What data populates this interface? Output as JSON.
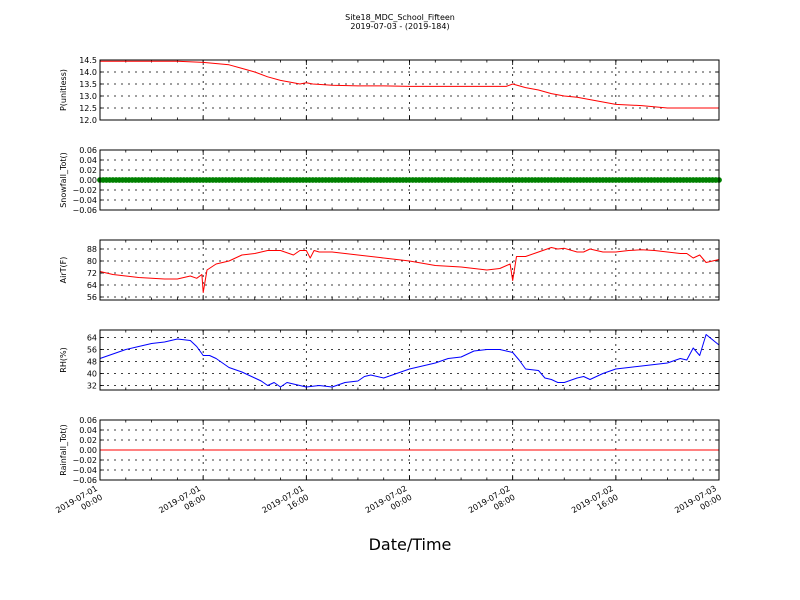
{
  "figure": {
    "title": "Site18_MDC_School_Fifteen",
    "subtitle": "2019-07-03 - (2019-184)",
    "xlabel": "Date/Time"
  },
  "chart_data": [
    {
      "type": "line",
      "ylabel": "P(unitless)",
      "ylim": [
        12.0,
        14.5
      ],
      "yticks": [
        "14.5",
        "14.0",
        "13.5",
        "13.0",
        "12.5",
        "12.0"
      ],
      "grid": true,
      "x_range_hours": [
        0,
        48
      ],
      "x_tick_labels": [
        [
          "2019-07-01",
          "00:00"
        ],
        [
          "2019-07-01",
          "08:00"
        ],
        [
          "2019-07-01",
          "16:00"
        ],
        [
          "2019-07-02",
          "00:00"
        ],
        [
          "2019-07-02",
          "08:00"
        ],
        [
          "2019-07-02",
          "16:00"
        ],
        [
          "2019-07-03",
          "00:00"
        ]
      ],
      "series": [
        {
          "color": "#ff0000",
          "x": [
            0,
            6,
            8,
            10,
            11,
            12,
            13,
            14,
            15,
            15.5,
            16,
            16.5,
            18,
            20,
            22,
            24,
            26,
            28,
            30,
            31.5,
            32,
            33,
            34,
            35,
            36,
            37,
            38,
            39,
            40,
            42,
            44,
            46,
            48
          ],
          "y": [
            14.45,
            14.45,
            14.4,
            14.3,
            14.15,
            14.0,
            13.8,
            13.65,
            13.55,
            13.5,
            13.55,
            13.5,
            13.45,
            13.42,
            13.42,
            13.4,
            13.4,
            13.4,
            13.4,
            13.4,
            13.5,
            13.35,
            13.25,
            13.1,
            13.0,
            12.95,
            12.85,
            12.75,
            12.65,
            12.6,
            12.5,
            12.5,
            12.5
          ]
        }
      ]
    },
    {
      "type": "scatter",
      "ylabel": "Snowfall_Tot()",
      "ylim": [
        -0.06,
        0.06
      ],
      "yticks": [
        "0.06",
        "0.04",
        "0.02",
        "0.00",
        "−0.02",
        "−0.04",
        "−0.06"
      ],
      "grid": true,
      "x_range_hours": [
        0,
        48
      ],
      "x_tick_labels": [
        [
          "2019-07-01",
          "00:00"
        ],
        [
          "2019-07-01",
          "08:00"
        ],
        [
          "2019-07-01",
          "16:00"
        ],
        [
          "2019-07-02",
          "00:00"
        ],
        [
          "2019-07-02",
          "08:00"
        ],
        [
          "2019-07-02",
          "16:00"
        ],
        [
          "2019-07-03",
          "00:00"
        ]
      ],
      "series": [
        {
          "color": "#008000",
          "x_step_hours": 0.25,
          "constant_y": 0.0
        }
      ]
    },
    {
      "type": "line",
      "ylabel": "AirT(F)",
      "ylim": [
        54,
        94
      ],
      "yticks": [
        "88",
        "80",
        "72",
        "64",
        "56"
      ],
      "grid": true,
      "x_range_hours": [
        0,
        48
      ],
      "x_tick_labels": [
        [
          "2019-07-01",
          "00:00"
        ],
        [
          "2019-07-01",
          "08:00"
        ],
        [
          "2019-07-01",
          "16:00"
        ],
        [
          "2019-07-02",
          "00:00"
        ],
        [
          "2019-07-02",
          "08:00"
        ],
        [
          "2019-07-02",
          "16:00"
        ],
        [
          "2019-07-03",
          "00:00"
        ]
      ],
      "series": [
        {
          "color": "#ff0000",
          "x": [
            0,
            1,
            2,
            3,
            4,
            5,
            6,
            7,
            7.5,
            7.9,
            8.0,
            8.3,
            9,
            10,
            11,
            12,
            13,
            14,
            15,
            15.5,
            16,
            16.3,
            16.6,
            17,
            18,
            20,
            22,
            24,
            26,
            28,
            30,
            31,
            31.8,
            32.0,
            32.3,
            33,
            34,
            35,
            35.5,
            36,
            37,
            37.5,
            38,
            39,
            40,
            41,
            42,
            43,
            44,
            45,
            45.5,
            46,
            46.5,
            47,
            48
          ],
          "y": [
            73,
            71,
            70,
            69,
            68.5,
            68,
            68,
            70,
            68.5,
            71,
            59,
            74,
            78,
            80,
            84,
            85,
            87,
            87,
            84,
            87,
            87,
            82,
            87,
            86,
            86,
            84,
            82,
            80,
            77,
            76,
            74,
            75,
            78,
            67,
            83,
            83,
            86,
            89,
            88,
            88.5,
            86,
            86,
            88,
            86,
            86,
            87,
            87.5,
            87,
            86,
            85,
            85,
            82,
            84,
            79,
            81
          ]
        }
      ]
    },
    {
      "type": "line",
      "ylabel": "RH(%)",
      "ylim": [
        29,
        69
      ],
      "yticks": [
        "64",
        "56",
        "48",
        "40",
        "32"
      ],
      "grid": true,
      "x_range_hours": [
        0,
        48
      ],
      "x_tick_labels": [
        [
          "2019-07-01",
          "00:00"
        ],
        [
          "2019-07-01",
          "08:00"
        ],
        [
          "2019-07-01",
          "16:00"
        ],
        [
          "2019-07-02",
          "00:00"
        ],
        [
          "2019-07-02",
          "08:00"
        ],
        [
          "2019-07-02",
          "16:00"
        ],
        [
          "2019-07-03",
          "00:00"
        ]
      ],
      "series": [
        {
          "color": "#0000ff",
          "x": [
            0,
            1,
            2,
            3,
            4,
            5,
            6,
            7,
            7.5,
            8,
            8.5,
            9,
            10,
            11,
            12,
            12.5,
            13,
            13.5,
            14,
            14.5,
            15,
            16,
            17,
            18,
            19,
            20,
            20.5,
            21,
            22,
            23,
            24,
            25,
            26,
            27,
            28,
            29,
            30,
            31,
            32,
            32.5,
            33,
            34,
            34.5,
            35,
            35.5,
            36,
            37,
            37.5,
            38,
            39,
            40,
            41,
            42,
            43,
            44,
            45,
            45.5,
            46,
            46.5,
            47,
            48
          ],
          "y": [
            50,
            53,
            56,
            58,
            60,
            61,
            63,
            62,
            58,
            52,
            52,
            50,
            44,
            41,
            37,
            35,
            32,
            34,
            31,
            34,
            33,
            31,
            32,
            31,
            34,
            35,
            38,
            39,
            37,
            40,
            43,
            45,
            47,
            50,
            51,
            55,
            56,
            56,
            54,
            49,
            43,
            42,
            37,
            36,
            34,
            34,
            37,
            38,
            36,
            40,
            43,
            44,
            45,
            46,
            47,
            50,
            49,
            57,
            52,
            66,
            59
          ]
        }
      ]
    },
    {
      "type": "line",
      "ylabel": "Rainfall_Tot()",
      "ylim": [
        -0.06,
        0.06
      ],
      "yticks": [
        "0.06",
        "0.04",
        "0.02",
        "0.00",
        "−0.02",
        "−0.04",
        "−0.06"
      ],
      "grid": true,
      "x_range_hours": [
        0,
        48
      ],
      "x_tick_labels": [
        [
          "2019-07-01",
          "00:00"
        ],
        [
          "2019-07-01",
          "08:00"
        ],
        [
          "2019-07-01",
          "16:00"
        ],
        [
          "2019-07-02",
          "00:00"
        ],
        [
          "2019-07-02",
          "08:00"
        ],
        [
          "2019-07-02",
          "16:00"
        ],
        [
          "2019-07-03",
          "00:00"
        ]
      ],
      "series": [
        {
          "color": "#ff0000",
          "x": [
            0,
            48
          ],
          "y": [
            0.0,
            0.0
          ]
        }
      ]
    }
  ]
}
